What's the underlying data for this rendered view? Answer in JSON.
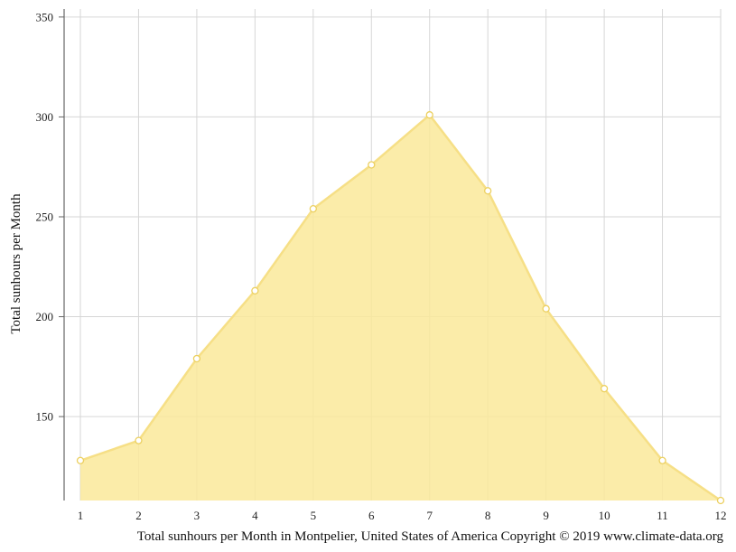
{
  "chart_data": {
    "type": "area",
    "xlabel": "",
    "ylabel": "Total sunhours per Month",
    "caption": "Total sunhours per Month in Montpelier, United States of America Copyright © 2019 www.climate-data.org",
    "x": [
      1,
      2,
      3,
      4,
      5,
      6,
      7,
      8,
      9,
      10,
      11,
      12
    ],
    "x_tick_labels": [
      "1",
      "2",
      "3",
      "4",
      "5",
      "6",
      "7",
      "8",
      "9",
      "10",
      "11",
      "12"
    ],
    "y_ticks": [
      150,
      200,
      250,
      300,
      350
    ],
    "y_tick_labels": [
      "150",
      "200",
      "250",
      "300",
      "350"
    ],
    "ylim": [
      108,
      354
    ],
    "grid": true,
    "series": [
      {
        "values": [
          128,
          138,
          179,
          213,
          254,
          276,
          301,
          263,
          204,
          164,
          128,
          108
        ],
        "color": "#fae99a",
        "stroke_color": "#f6df86",
        "marker_stroke": "#ecd060"
      }
    ]
  }
}
